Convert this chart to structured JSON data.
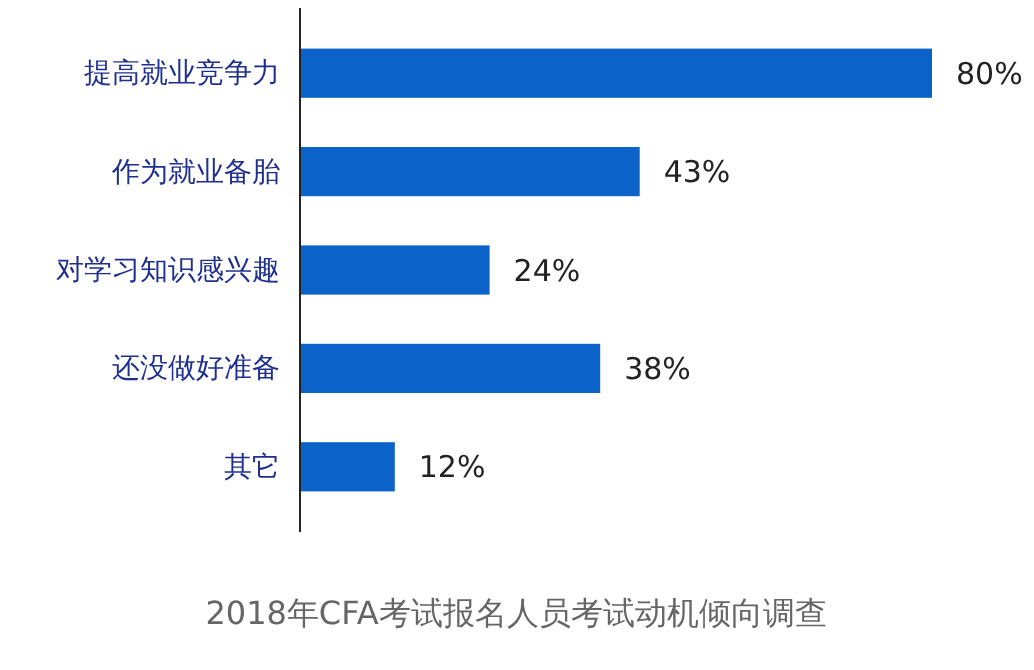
{
  "chart_data": {
    "type": "bar",
    "orientation": "horizontal",
    "title": "2018年CFA考试报名人员考试动机倾向调查",
    "categories": [
      "提高就业竞争力",
      "作为就业备胎",
      "对学习知识感兴趣",
      "还没做好准备",
      "其它"
    ],
    "values": [
      80,
      43,
      24,
      38,
      12
    ],
    "value_labels": [
      "80%",
      "43%",
      "24%",
      "38%",
      "12%"
    ],
    "color": "#0b63c9"
  }
}
